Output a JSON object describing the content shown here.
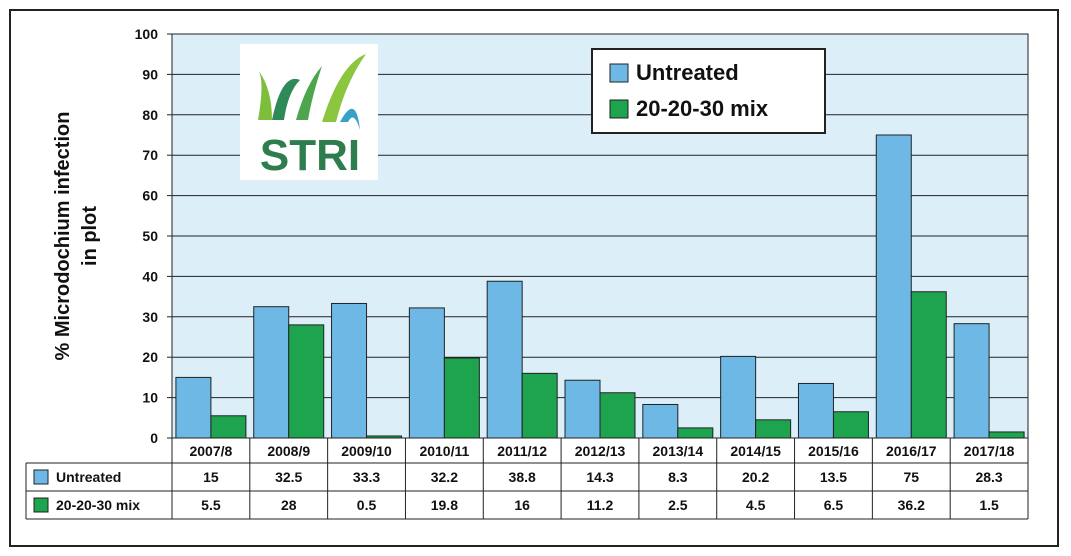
{
  "chart_data": {
    "type": "bar",
    "ylabel": "% Microdochium infection in plot",
    "ylabel_lines": [
      "% Microdochium infection",
      "in plot"
    ],
    "ylim": [
      0,
      100
    ],
    "yticks": [
      0,
      10,
      20,
      30,
      40,
      50,
      60,
      70,
      80,
      90,
      100
    ],
    "grid": true,
    "legend_position": "top-right",
    "categories": [
      "2007/8",
      "2008/9",
      "2009/10",
      "2010/11",
      "2011/12",
      "2012/13",
      "2013/14",
      "2014/15",
      "2015/16",
      "2016/17",
      "2017/18"
    ],
    "series": [
      {
        "name": "Untreated",
        "color": "#6EB8E6",
        "values": [
          15,
          32.5,
          33.3,
          32.2,
          38.8,
          14.3,
          8.3,
          20.2,
          13.5,
          75,
          28.3
        ],
        "table_values": [
          "15",
          "32.5",
          "33.3",
          "32.2",
          "38.8",
          "14.3",
          "8.3",
          "20.2",
          "13.5",
          "75",
          "28.3"
        ]
      },
      {
        "name": "20-20-30 mix",
        "color": "#1EA34E",
        "values": [
          5.5,
          28,
          0.5,
          19.8,
          16,
          11.2,
          2.5,
          4.5,
          6.5,
          36.2,
          1.5
        ],
        "table_values": [
          "5.5",
          "28",
          "0.5",
          "19.8",
          "16",
          "11.2",
          "2.5",
          "4.5",
          "6.5",
          "36.2",
          "1.5"
        ]
      }
    ],
    "plot_background": "#DCEFF9"
  },
  "logo": {
    "text": "STRI",
    "color": "#2E7D4F"
  }
}
